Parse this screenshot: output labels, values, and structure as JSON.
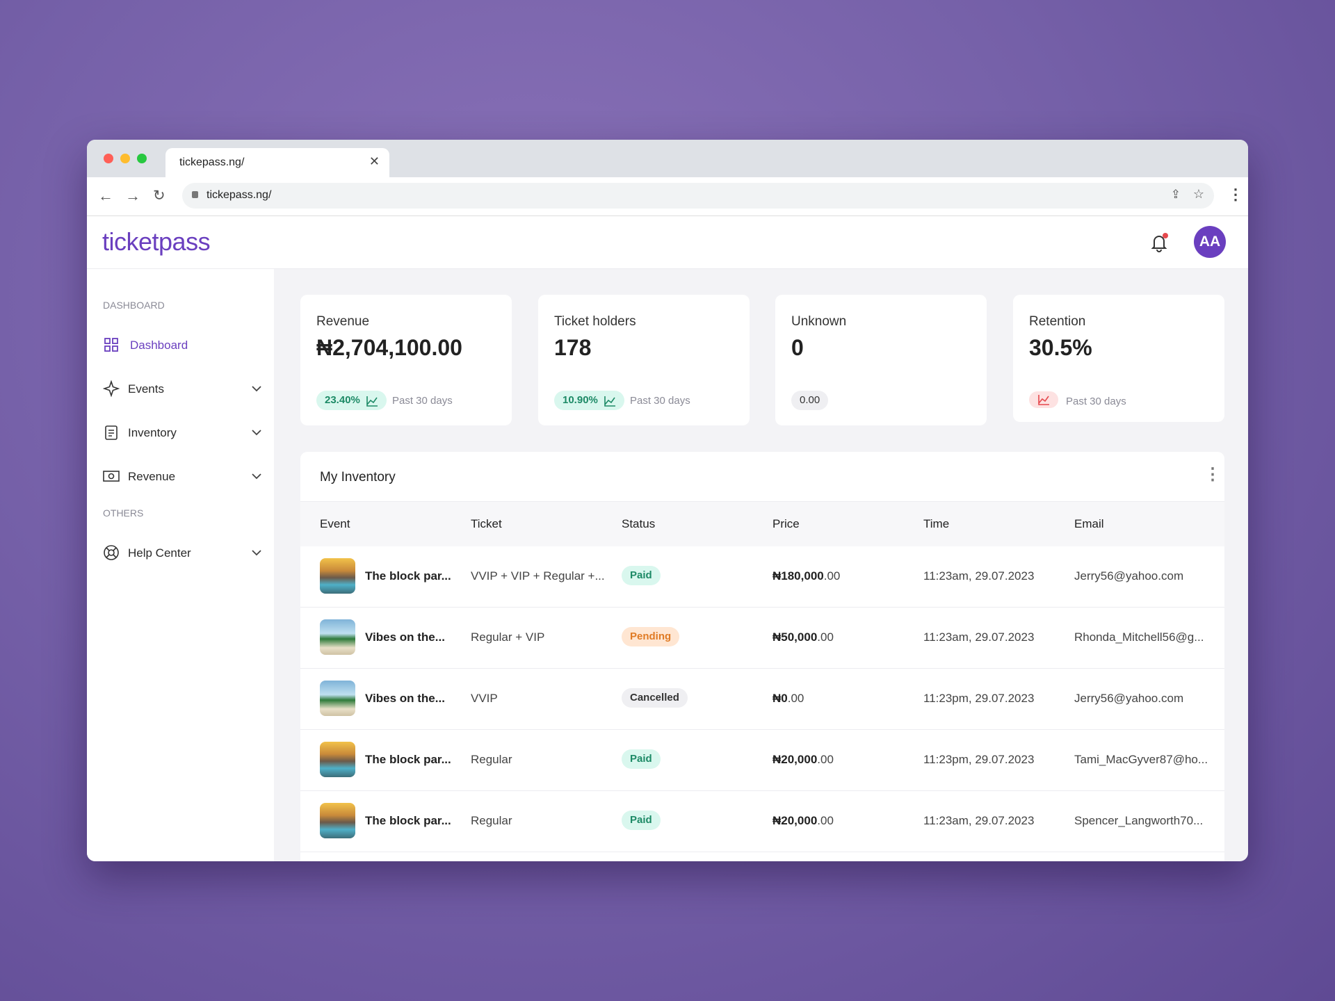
{
  "browser": {
    "tab_title": "tickepass.ng/",
    "url": "tickepass.ng/"
  },
  "header": {
    "logo": "ticketpass",
    "avatar": "AA"
  },
  "sidebar": {
    "sections": [
      {
        "title": "DASHBOARD",
        "items": [
          "Dashboard",
          "Events",
          "Inventory",
          "Revenue"
        ]
      },
      {
        "title": "OTHERS",
        "items": [
          "Help Center"
        ]
      }
    ]
  },
  "stats": [
    {
      "label": "Revenue",
      "value": "₦2,704,100.00",
      "change": "23.40%",
      "period": "Past 30 days",
      "trend": "up"
    },
    {
      "label": "Ticket holders",
      "value": "178",
      "change": "10.90%",
      "period": "Past 30 days",
      "trend": "up"
    },
    {
      "label": "Unknown",
      "value": "0",
      "change": "0.00",
      "trend": "neutral"
    },
    {
      "label": "Retention",
      "value": "30.5%",
      "period": "Past 30 days",
      "trend": "down"
    }
  ],
  "table": {
    "title": "My Inventory",
    "columns": [
      "Event",
      "Ticket",
      "Status",
      "Price",
      "Time",
      "Email"
    ],
    "rows": [
      {
        "image": "pool",
        "event": "The block par...",
        "ticket": "VVIP + VIP + Regular +...",
        "status": "Paid",
        "price": "₦180,000",
        "price_decimals": ".00",
        "time": "11:23am, 29.07.2023",
        "email": "Jerry56@yahoo.com"
      },
      {
        "image": "beach",
        "event": "Vibes on the...",
        "ticket": "Regular + VIP",
        "status": "Pending",
        "price": "₦50,000",
        "price_decimals": ".00",
        "time": "11:23am, 29.07.2023",
        "email": "Rhonda_Mitchell56@g..."
      },
      {
        "image": "beach",
        "event": "Vibes on the...",
        "ticket": "VVIP",
        "status": "Cancelled",
        "price": "₦0",
        "price_decimals": ".00",
        "time": "11:23pm, 29.07.2023",
        "email": "Jerry56@yahoo.com"
      },
      {
        "image": "pool",
        "event": "The block par...",
        "ticket": "Regular",
        "status": "Paid",
        "price": "₦20,000",
        "price_decimals": ".00",
        "time": "11:23pm, 29.07.2023",
        "email": "Tami_MacGyver87@ho..."
      },
      {
        "image": "pool",
        "event": "The block par...",
        "ticket": "Regular",
        "status": "Paid",
        "price": "₦20,000",
        "price_decimals": ".00",
        "time": "11:23am, 29.07.2023",
        "email": "Spencer_Langworth70..."
      }
    ]
  }
}
